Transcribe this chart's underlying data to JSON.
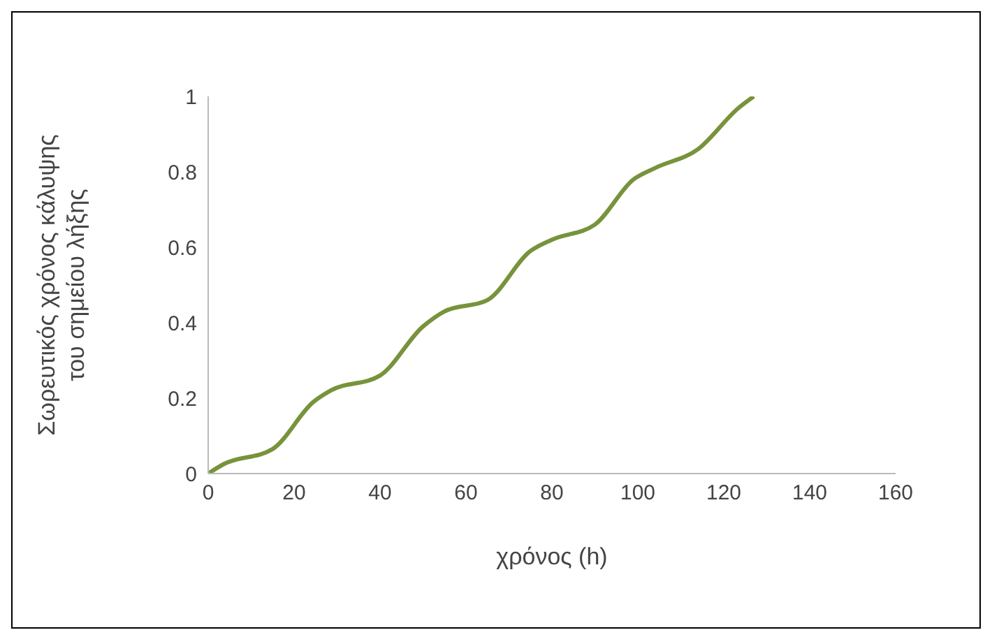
{
  "chart_data": {
    "type": "line",
    "xlabel": "χρόνος (h)",
    "ylabel": "Σωρευτικός χρόνος κάλυψης του σημείου λήξης",
    "x": [
      0,
      3.6,
      15,
      24.5,
      28.5,
      40,
      50,
      55,
      65,
      75,
      80,
      90,
      99,
      104,
      114,
      123.5,
      127
    ],
    "series": [
      {
        "color": "#77933c",
        "values": [
          0,
          0.025,
          0.065,
          0.19,
          0.22,
          0.26,
          0.39,
          0.43,
          0.46,
          0.59,
          0.62,
          0.66,
          0.78,
          0.81,
          0.86,
          0.97,
          1.0
        ]
      }
    ],
    "xlim": [
      0,
      160
    ],
    "xticks": [
      0,
      20,
      40,
      60,
      80,
      100,
      120,
      140,
      160
    ],
    "ylim": [
      0,
      1
    ],
    "yticks": [
      0,
      0.2,
      0.4,
      0.6,
      0.8,
      1
    ],
    "grid": false,
    "legend": false,
    "marker": "none",
    "line_style": "solid"
  }
}
